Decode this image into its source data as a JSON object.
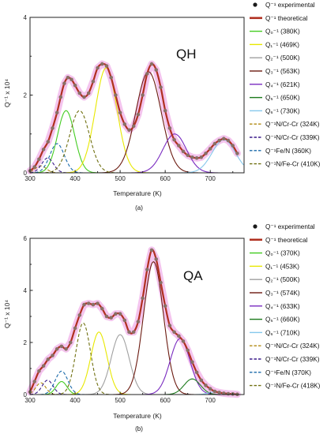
{
  "panels": [
    {
      "id": "a",
      "tag": "QH",
      "caption": "(a)",
      "xlabel": "Temperature (K)",
      "ylabel": "Q⁻¹ x 10⁴",
      "xlim": [
        300,
        775
      ],
      "ylim": [
        0,
        4
      ],
      "xticks": [
        "300",
        "400",
        "500",
        "600",
        "700"
      ],
      "yticks": [
        "0",
        "2",
        "4"
      ],
      "legend": [
        {
          "label": "Q⁻¹ experimental",
          "kind": "dot",
          "color": "#1a1a1a"
        },
        {
          "label": "Q⁻¹ theoretical",
          "kind": "thick",
          "color": "#b03020"
        },
        {
          "label": "Q₀⁻¹ (380K)",
          "kind": "solid",
          "color": "#44cc22"
        },
        {
          "label": "Q₁⁻¹ (469K)",
          "kind": "solid",
          "color": "#e8e800"
        },
        {
          "label": "Q₂⁻¹ (500K)",
          "kind": "solid",
          "color": "#a0a0a0"
        },
        {
          "label": "Q₃⁻¹ (563K)",
          "kind": "solid",
          "color": "#6b1a10"
        },
        {
          "label": "Q₄⁻¹ (621K)",
          "kind": "solid",
          "color": "#7a2cc0"
        },
        {
          "label": "Q₅⁻¹ (650K)",
          "kind": "solid",
          "color": "#1c7a1c"
        },
        {
          "label": "Q₆⁻¹ (730K)",
          "kind": "solid",
          "color": "#86c8ec"
        },
        {
          "label": "Q⁻¹N/Cr-Cr (324K)",
          "kind": "dash",
          "color": "#b08a10"
        },
        {
          "label": "Q⁻¹N/Cr-Cr (339K)",
          "kind": "dash",
          "color": "#3a1a8a"
        },
        {
          "label": "Q⁻¹Fe/N (360K)",
          "kind": "dash",
          "color": "#1a6aaa"
        },
        {
          "label": "Q⁻¹N/Fe-Cr (410K)",
          "kind": "dash",
          "color": "#707010"
        }
      ],
      "chart_data": {
        "type": "line",
        "xlabel": "Temperature (K)",
        "ylabel": "Q⁻¹ x 10⁴",
        "xlim": [
          300,
          775
        ],
        "ylim": [
          0,
          4
        ],
        "series": [
          {
            "name": "Q₀⁻¹ (380K)",
            "center": 380,
            "height": 1.6,
            "width": 19,
            "color": "#44cc22"
          },
          {
            "name": "Q₁⁻¹ (469K)",
            "center": 469,
            "height": 2.7,
            "width": 24,
            "color": "#e8e800"
          },
          {
            "name": "Q₃⁻¹ (563K)",
            "center": 563,
            "height": 2.6,
            "width": 28,
            "color": "#6b1a10"
          },
          {
            "name": "Q₄⁻¹ (621K)",
            "center": 621,
            "height": 1.0,
            "width": 26,
            "color": "#7a2cc0"
          },
          {
            "name": "Q₆⁻¹ (730K)",
            "center": 730,
            "height": 0.85,
            "width": 26,
            "color": "#86c8ec"
          },
          {
            "name": "Q⁻¹N/Cr-Cr (324K)",
            "center": 324,
            "height": 0.18,
            "width": 12,
            "color": "#b08a10",
            "dashed": true
          },
          {
            "name": "Q⁻¹N/Cr-Cr (339K)",
            "center": 339,
            "height": 0.38,
            "width": 13,
            "color": "#3a1a8a",
            "dashed": true
          },
          {
            "name": "Q⁻¹Fe/N (360K)",
            "center": 360,
            "height": 0.75,
            "width": 16,
            "color": "#1a6aaa",
            "dashed": true
          },
          {
            "name": "Q⁻¹N/Fe-Cr (410K)",
            "center": 410,
            "height": 1.6,
            "width": 22,
            "color": "#707010",
            "dashed": true
          }
        ],
        "theoretical": {
          "name": "Q⁻¹ theoretical",
          "color": "#b03020"
        },
        "experimental": {
          "name": "Q⁻¹ experimental",
          "x": [
            300,
            310,
            320,
            330,
            340,
            350,
            360,
            368,
            376,
            384,
            392,
            400,
            410,
            420,
            430,
            440,
            450,
            460,
            470,
            480,
            490,
            500,
            510,
            520,
            530,
            540,
            550,
            560,
            570,
            580,
            590,
            600,
            610,
            620,
            630,
            640,
            650,
            660,
            670,
            680,
            690,
            700,
            710,
            720,
            730,
            740,
            750,
            760
          ],
          "y": [
            0.05,
            0.15,
            0.35,
            0.6,
            0.8,
            1.15,
            1.55,
            1.95,
            2.3,
            2.45,
            2.4,
            2.25,
            2.05,
            1.95,
            2.05,
            2.35,
            2.7,
            2.8,
            2.75,
            2.45,
            2.0,
            1.55,
            1.25,
            1.1,
            1.2,
            1.5,
            2.0,
            2.55,
            2.8,
            2.65,
            2.2,
            1.6,
            1.15,
            0.85,
            0.7,
            0.55,
            0.45,
            0.4,
            0.38,
            0.4,
            0.5,
            0.62,
            0.75,
            0.83,
            0.88,
            0.83,
            0.7,
            0.5
          ]
        }
      }
    },
    {
      "id": "b",
      "tag": "QA",
      "caption": "(b)",
      "xlabel": "Temperature (K)",
      "ylabel": "Q⁻¹ x 10⁴",
      "xlim": [
        300,
        775
      ],
      "ylim": [
        0,
        6
      ],
      "xticks": [
        "300",
        "400",
        "500",
        "600",
        "700"
      ],
      "yticks": [
        "0",
        "2",
        "4",
        "6"
      ],
      "legend": [
        {
          "label": "Q⁻¹ experimental",
          "kind": "dot",
          "color": "#1a1a1a"
        },
        {
          "label": "Q⁻¹ theoretical",
          "kind": "thick",
          "color": "#b03020"
        },
        {
          "label": "Q₀⁻¹ (370K)",
          "kind": "solid",
          "color": "#44cc22"
        },
        {
          "label": "Q₁⁻¹ (453K)",
          "kind": "solid",
          "color": "#e8e800"
        },
        {
          "label": "Q₂⁻¹ (500K)",
          "kind": "solid",
          "color": "#a0a0a0"
        },
        {
          "label": "Q₃⁻¹ (574K)",
          "kind": "solid",
          "color": "#6b1a10"
        },
        {
          "label": "Q₄⁻¹ (633K)",
          "kind": "solid",
          "color": "#7a2cc0"
        },
        {
          "label": "Q₅⁻¹ (660K)",
          "kind": "solid",
          "color": "#1c7a1c"
        },
        {
          "label": "Q₆⁻¹ (710K)",
          "kind": "solid",
          "color": "#86c8ec"
        },
        {
          "label": "Q⁻¹N/Cr-Cr (324K)",
          "kind": "dash",
          "color": "#b08a10"
        },
        {
          "label": "Q⁻¹N/Cr-Cr (339K)",
          "kind": "dash",
          "color": "#3a1a8a"
        },
        {
          "label": "Q⁻¹Fe/N (370K)",
          "kind": "dash",
          "color": "#1a6aaa"
        },
        {
          "label": "Q⁻¹N/Fe-Cr (418K)",
          "kind": "dash",
          "color": "#707010"
        }
      ],
      "chart_data": {
        "type": "line",
        "xlabel": "Temperature (K)",
        "ylabel": "Q⁻¹ x 10⁴",
        "xlim": [
          300,
          775
        ],
        "ylim": [
          0,
          6
        ],
        "series": [
          {
            "name": "Q₀⁻¹ (370K)",
            "center": 370,
            "height": 0.5,
            "width": 12,
            "color": "#44cc22"
          },
          {
            "name": "Q₁⁻¹ (453K)",
            "center": 453,
            "height": 2.4,
            "width": 18,
            "color": "#e8e800"
          },
          {
            "name": "Q₂⁻¹ (500K)",
            "center": 500,
            "height": 2.3,
            "width": 20,
            "color": "#a0a0a0"
          },
          {
            "name": "Q₃⁻¹ (574K)",
            "center": 574,
            "height": 5.1,
            "width": 22,
            "color": "#6b1a10"
          },
          {
            "name": "Q₄⁻¹ (633K)",
            "center": 633,
            "height": 2.15,
            "width": 22,
            "color": "#7a2cc0"
          },
          {
            "name": "Q₅⁻¹ (660K)",
            "center": 660,
            "height": 0.6,
            "width": 18,
            "color": "#1c7a1c"
          },
          {
            "name": "Q₆⁻¹ (710K)",
            "center": 710,
            "height": 0.1,
            "width": 14,
            "color": "#86c8ec"
          },
          {
            "name": "Q⁻¹N/Cr-Cr (324K)",
            "center": 324,
            "height": 0.45,
            "width": 11,
            "color": "#b08a10",
            "dashed": true
          },
          {
            "name": "Q⁻¹N/Cr-Cr (339K)",
            "center": 339,
            "height": 0.55,
            "width": 12,
            "color": "#3a1a8a",
            "dashed": true
          },
          {
            "name": "Q⁻¹Fe/N (370K)",
            "center": 370,
            "height": 0.9,
            "width": 14,
            "color": "#1a6aaa",
            "dashed": true
          },
          {
            "name": "Q⁻¹N/Fe-Cr (418K)",
            "center": 418,
            "height": 2.75,
            "width": 16,
            "color": "#707010",
            "dashed": true
          }
        ],
        "theoretical": {
          "name": "Q⁻¹ theoretical",
          "color": "#b03020"
        },
        "experimental": {
          "name": "Q⁻¹ experimental",
          "x": [
            300,
            310,
            320,
            330,
            340,
            350,
            360,
            370,
            380,
            390,
            400,
            410,
            420,
            430,
            440,
            450,
            460,
            470,
            480,
            490,
            500,
            510,
            520,
            530,
            540,
            550,
            560,
            570,
            580,
            590,
            600,
            610,
            620,
            630,
            640,
            650,
            660,
            670,
            680,
            690,
            700,
            710,
            720,
            730,
            740,
            750,
            760
          ],
          "y": [
            0.1,
            0.5,
            0.9,
            1.1,
            1.35,
            1.5,
            1.75,
            1.85,
            1.75,
            2.0,
            2.55,
            3.05,
            3.45,
            3.5,
            3.45,
            3.5,
            3.3,
            3.0,
            2.95,
            3.1,
            3.1,
            2.85,
            2.4,
            2.4,
            2.8,
            3.7,
            4.8,
            5.55,
            5.2,
            4.3,
            3.4,
            2.65,
            2.4,
            2.25,
            2.05,
            1.7,
            1.25,
            0.85,
            0.55,
            0.35,
            0.22,
            0.12,
            0.08,
            0.05,
            0.03,
            0.02,
            0.01
          ]
        }
      }
    }
  ]
}
